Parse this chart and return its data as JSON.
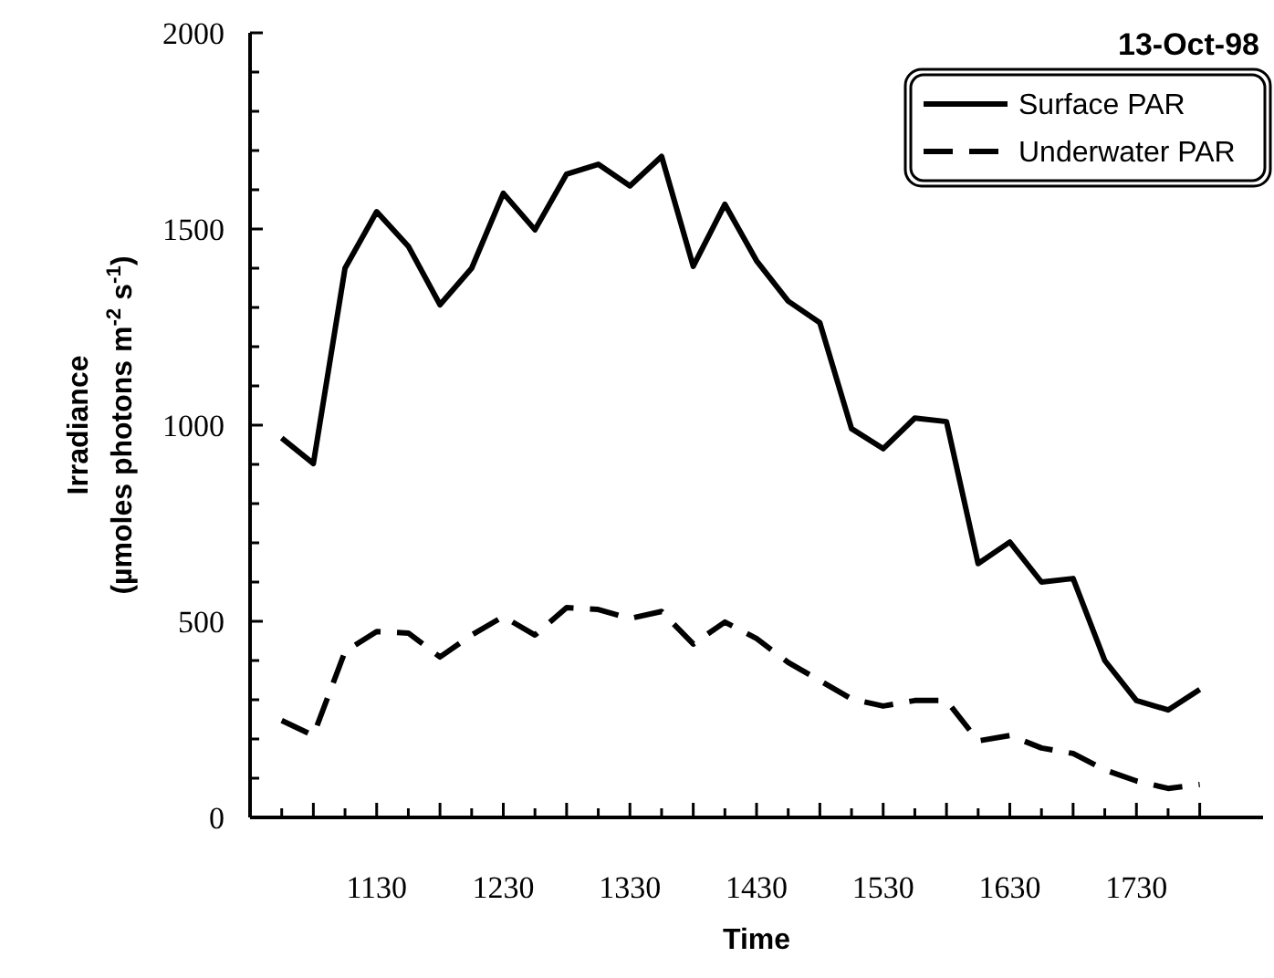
{
  "chart_data": {
    "type": "line",
    "title": "13-Oct-98",
    "xlabel": "Time",
    "ylabel": "Irradiance\n(µmoles photons m$^{-2}$ s$^{-1}$)",
    "categories": [
      null,
      null,
      null,
      "1130",
      null,
      null,
      null,
      "1230",
      null,
      null,
      null,
      "1330",
      null,
      null,
      null,
      "1430",
      null,
      null,
      null,
      "1530",
      null,
      null,
      null,
      "1630",
      null,
      null,
      null,
      "1730",
      null,
      null
    ],
    "series": [
      {
        "name": "Surface PAR",
        "color": "#000000",
        "line_style": "solid",
        "values": [
          967,
          902,
          1400,
          1544,
          1456,
          1307,
          1400,
          1591,
          1498,
          1640,
          1665,
          1610,
          1685,
          1405,
          1563,
          1419,
          1316,
          1261,
          991,
          940,
          1018,
          1009,
          647,
          702,
          600,
          609,
          400,
          298,
          274,
          326
        ]
      },
      {
        "name": "Underwater PAR",
        "color": "#000000",
        "line_style": "dashed",
        "values": [
          247,
          209,
          423,
          474,
          470,
          409,
          465,
          512,
          465,
          535,
          530,
          507,
          525,
          442,
          498,
          456,
          395,
          349,
          302,
          284,
          298,
          298,
          195,
          209,
          177,
          163,
          121,
          93,
          74,
          84
        ]
      }
    ],
    "ylim": [
      0,
      2000
    ],
    "yticks": [
      0,
      {
        "value": 100,
        "label": null
      },
      {
        "value": 200,
        "label": null
      },
      {
        "value": 300,
        "label": null
      },
      {
        "value": 400,
        "label": null
      },
      500,
      {
        "value": 600,
        "label": null
      },
      {
        "value": 700,
        "label": null
      },
      {
        "value": 800,
        "label": null
      },
      {
        "value": 900,
        "label": null
      },
      1000,
      {
        "value": 1100,
        "label": null
      },
      {
        "value": 1200,
        "label": null
      },
      {
        "value": 1300,
        "label": null
      },
      {
        "value": 1400,
        "label": null
      },
      1500,
      {
        "value": 1600,
        "label": null
      },
      {
        "value": 1700,
        "label": null
      },
      {
        "value": 1800,
        "label": null
      },
      {
        "value": 1900,
        "label": null
      },
      2000
    ],
    "grid": false,
    "legend": "top right"
  }
}
